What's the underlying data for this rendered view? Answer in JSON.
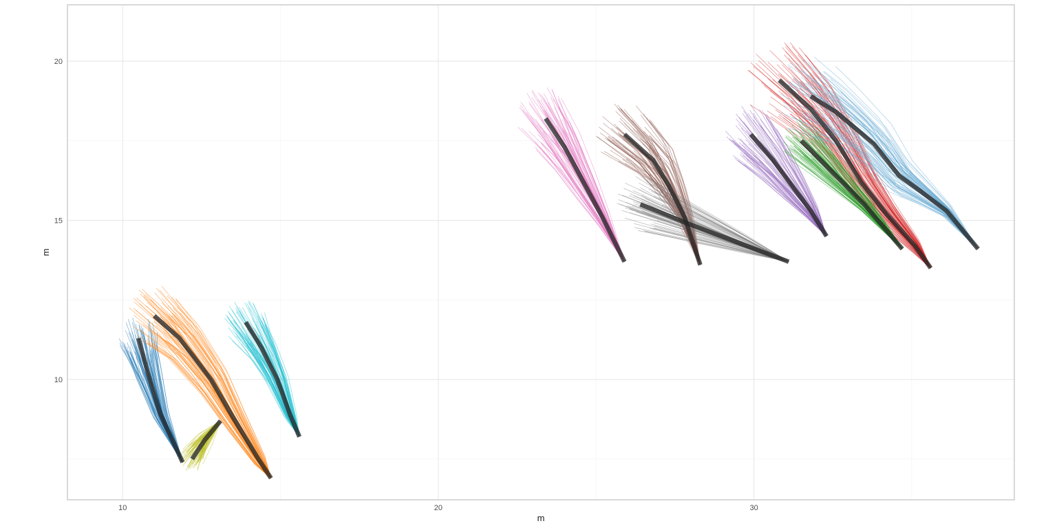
{
  "chart_data": {
    "type": "line",
    "title": "",
    "xlabel": "m",
    "ylabel": "m",
    "xlim": [
      8.25,
      38.25
    ],
    "ylim": [
      6.22,
      21.77
    ],
    "x_ticks": [
      10,
      20,
      30
    ],
    "y_ticks": [
      10,
      15,
      20
    ],
    "x_tick_labels": [
      "10",
      "20",
      "30"
    ],
    "y_tick_labels": [
      "10",
      "15",
      "20"
    ],
    "grid": true,
    "legend": "none",
    "series": [
      {
        "color": "#1f77b4",
        "spread": 0.55,
        "path": [
          [
            10.5,
            11.3
          ],
          [
            10.8,
            10.2
          ],
          [
            11.2,
            8.9
          ],
          [
            11.9,
            7.4
          ]
        ]
      },
      {
        "color": "#ff7f0e",
        "spread": 0.75,
        "path": [
          [
            11.0,
            12.0
          ],
          [
            11.8,
            11.3
          ],
          [
            12.8,
            10.0
          ],
          [
            13.5,
            8.8
          ],
          [
            14.3,
            7.5
          ],
          [
            14.7,
            6.9
          ]
        ]
      },
      {
        "color": "#bcbd22",
        "spread": 0.35,
        "path": [
          [
            12.2,
            7.5
          ],
          [
            12.6,
            8.1
          ],
          [
            13.1,
            8.7
          ]
        ]
      },
      {
        "color": "#17becf",
        "spread": 0.6,
        "path": [
          [
            13.9,
            11.8
          ],
          [
            14.4,
            11.0
          ],
          [
            14.9,
            10.0
          ],
          [
            15.3,
            8.9
          ],
          [
            15.6,
            8.2
          ]
        ]
      },
      {
        "color": "#e377c2",
        "spread": 0.8,
        "path": [
          [
            23.4,
            18.2
          ],
          [
            24.0,
            17.3
          ],
          [
            24.6,
            16.2
          ],
          [
            25.2,
            15.1
          ],
          [
            25.9,
            13.7
          ]
        ]
      },
      {
        "color": "#8c564b",
        "spread": 0.8,
        "path": [
          [
            25.9,
            17.7
          ],
          [
            26.8,
            16.9
          ],
          [
            27.3,
            16.1
          ],
          [
            27.8,
            15.1
          ],
          [
            28.3,
            13.6
          ]
        ]
      },
      {
        "color": "#7f7f7f",
        "spread": 0.7,
        "path": [
          [
            26.4,
            15.5
          ],
          [
            27.9,
            14.9
          ],
          [
            29.5,
            14.3
          ],
          [
            31.1,
            13.7
          ]
        ]
      },
      {
        "color": "#9467bd",
        "spread": 0.75,
        "path": [
          [
            29.9,
            17.7
          ],
          [
            30.6,
            16.9
          ],
          [
            31.2,
            16.1
          ],
          [
            31.8,
            15.3
          ],
          [
            32.3,
            14.5
          ]
        ]
      },
      {
        "color": "#d62728",
        "spread": 1.0,
        "path": [
          [
            30.8,
            19.4
          ],
          [
            31.8,
            18.5
          ],
          [
            32.6,
            17.5
          ],
          [
            33.4,
            16.2
          ],
          [
            34.2,
            15.2
          ],
          [
            35.1,
            14.2
          ],
          [
            35.6,
            13.5
          ]
        ]
      },
      {
        "color": "#2ca02c",
        "spread": 0.55,
        "path": [
          [
            31.5,
            17.5
          ],
          [
            32.5,
            16.5
          ],
          [
            33.5,
            15.5
          ],
          [
            34.7,
            14.1
          ]
        ]
      },
      {
        "color": "#6baed6",
        "spread": 1.0,
        "path": [
          [
            31.8,
            18.9
          ],
          [
            32.6,
            18.4
          ],
          [
            33.8,
            17.4
          ],
          [
            34.6,
            16.4
          ],
          [
            35.3,
            15.9
          ],
          [
            36.1,
            15.3
          ],
          [
            37.1,
            14.1
          ]
        ]
      }
    ]
  }
}
